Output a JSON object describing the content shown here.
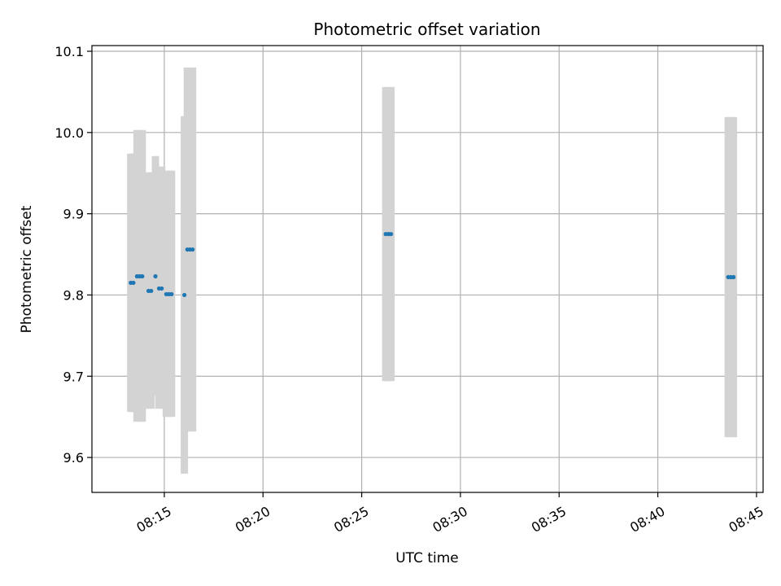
{
  "chart_data": {
    "type": "scatter",
    "title": "Photometric offset variation",
    "xlabel": "UTC time",
    "ylabel": "Photometric offset",
    "x_type": "time",
    "xlim": [
      "08:11:20",
      "08:45:20"
    ],
    "ylim": [
      9.557,
      10.107
    ],
    "x_ticks": [
      "08:15",
      "08:20",
      "08:25",
      "08:30",
      "08:35",
      "08:40",
      "08:45"
    ],
    "y_ticks": [
      9.6,
      9.7,
      9.8,
      9.9,
      10.0,
      10.1
    ],
    "y_tick_labels": [
      "9.6",
      "9.7",
      "9.8",
      "9.9",
      "10.0",
      "10.1"
    ],
    "grid": true,
    "colors": {
      "points": "#1f77b4",
      "error_bars": "#d3d3d3",
      "grid": "#b0b0b0"
    },
    "points": [
      {
        "x": "08:13:18",
        "y": 9.815,
        "low": 9.656,
        "high": 9.974
      },
      {
        "x": "08:13:26",
        "y": 9.815,
        "low": 9.656,
        "high": 9.974
      },
      {
        "x": "08:13:37",
        "y": 9.823,
        "low": 9.644,
        "high": 10.003
      },
      {
        "x": "08:13:45",
        "y": 9.823,
        "low": 9.644,
        "high": 10.003
      },
      {
        "x": "08:13:53",
        "y": 9.823,
        "low": 9.644,
        "high": 10.003
      },
      {
        "x": "08:14:12",
        "y": 9.805,
        "low": 9.66,
        "high": 9.951
      },
      {
        "x": "08:14:20",
        "y": 9.805,
        "low": 9.66,
        "high": 9.951
      },
      {
        "x": "08:14:33",
        "y": 9.823,
        "low": 9.676,
        "high": 9.971
      },
      {
        "x": "08:14:44",
        "y": 9.808,
        "low": 9.66,
        "high": 9.958
      },
      {
        "x": "08:14:52",
        "y": 9.808,
        "low": 9.66,
        "high": 9.958
      },
      {
        "x": "08:15:06",
        "y": 9.801,
        "low": 9.65,
        "high": 9.953
      },
      {
        "x": "08:15:14",
        "y": 9.801,
        "low": 9.65,
        "high": 9.953
      },
      {
        "x": "08:15:22",
        "y": 9.801,
        "low": 9.65,
        "high": 9.953
      },
      {
        "x": "08:16:01",
        "y": 9.8,
        "low": 9.58,
        "high": 10.02
      },
      {
        "x": "08:16:10",
        "y": 9.856,
        "low": 9.632,
        "high": 10.08
      },
      {
        "x": "08:16:18",
        "y": 9.856,
        "low": 9.632,
        "high": 10.08
      },
      {
        "x": "08:16:26",
        "y": 9.856,
        "low": 9.632,
        "high": 10.08
      },
      {
        "x": "08:26:13",
        "y": 9.875,
        "low": 9.694,
        "high": 10.056
      },
      {
        "x": "08:26:21",
        "y": 9.875,
        "low": 9.694,
        "high": 10.056
      },
      {
        "x": "08:26:29",
        "y": 9.875,
        "low": 9.694,
        "high": 10.056
      },
      {
        "x": "08:43:34",
        "y": 9.822,
        "low": 9.625,
        "high": 10.019
      },
      {
        "x": "08:43:42",
        "y": 9.822,
        "low": 9.625,
        "high": 10.019
      },
      {
        "x": "08:43:50",
        "y": 9.822,
        "low": 9.625,
        "high": 10.019
      }
    ]
  }
}
